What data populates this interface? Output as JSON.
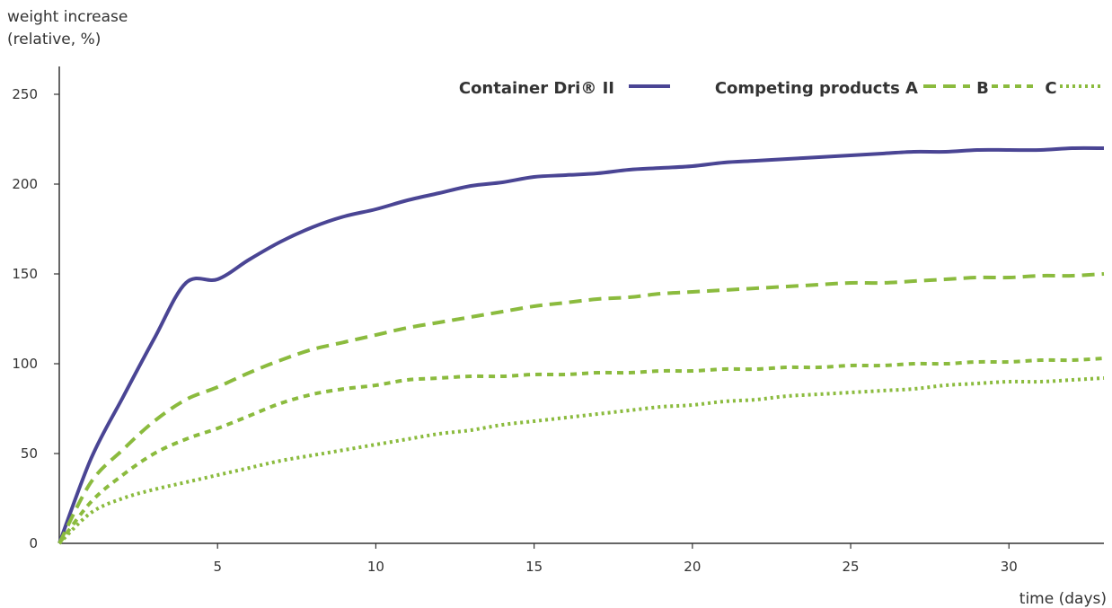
{
  "chart_data": {
    "type": "line",
    "ylabel_line1": "weight increase",
    "ylabel_line2": "(relative, %)",
    "xlabel": "time (days)",
    "xlim": [
      0,
      33
    ],
    "ylim": [
      0,
      265
    ],
    "xticks": [
      5,
      10,
      15,
      20,
      25,
      30
    ],
    "yticks": [
      0,
      50,
      100,
      150,
      200,
      250
    ],
    "grid": false,
    "legend_placement": "top-right",
    "legend": {
      "container_label": "Container Dri® II",
      "competing_label": "Competing products A",
      "b_label": "B",
      "c_label": "C"
    },
    "series": [
      {
        "key": "container_dri",
        "color": "#4a4594",
        "style": "solid",
        "x": [
          0,
          1,
          2,
          3,
          4,
          5,
          6,
          7,
          8,
          9,
          10,
          11,
          12,
          13,
          14,
          15,
          16,
          17,
          18,
          19,
          20,
          21,
          22,
          23,
          24,
          25,
          26,
          27,
          28,
          29,
          30,
          31,
          32,
          33
        ],
        "y": [
          0,
          47,
          81,
          114,
          145,
          147,
          158,
          168,
          176,
          182,
          186,
          191,
          195,
          199,
          201,
          204,
          205,
          206,
          208,
          209,
          210,
          212,
          213,
          214,
          215,
          216,
          217,
          218,
          218,
          219,
          219,
          219,
          220,
          220
        ]
      },
      {
        "key": "competing_a",
        "color": "#8bbb3e",
        "style": "dash-long",
        "x": [
          0,
          1,
          2,
          3,
          4,
          5,
          6,
          7,
          8,
          9,
          10,
          11,
          12,
          13,
          14,
          15,
          16,
          17,
          18,
          19,
          20,
          21,
          22,
          23,
          24,
          25,
          26,
          27,
          28,
          29,
          30,
          31,
          32,
          33
        ],
        "y": [
          0,
          34,
          52,
          68,
          80,
          87,
          95,
          102,
          108,
          112,
          116,
          120,
          123,
          126,
          129,
          132,
          134,
          136,
          137,
          139,
          140,
          141,
          142,
          143,
          144,
          145,
          145,
          146,
          147,
          148,
          148,
          149,
          149,
          150
        ]
      },
      {
        "key": "competing_b",
        "color": "#8bbb3e",
        "style": "dash-short",
        "x": [
          0,
          1,
          2,
          3,
          4,
          5,
          6,
          7,
          8,
          9,
          10,
          11,
          12,
          13,
          14,
          15,
          16,
          17,
          18,
          19,
          20,
          21,
          22,
          23,
          24,
          25,
          26,
          27,
          28,
          29,
          30,
          31,
          32,
          33
        ],
        "y": [
          0,
          23,
          38,
          50,
          58,
          64,
          71,
          78,
          83,
          86,
          88,
          91,
          92,
          93,
          93,
          94,
          94,
          95,
          95,
          96,
          96,
          97,
          97,
          98,
          98,
          99,
          99,
          100,
          100,
          101,
          101,
          102,
          102,
          103
        ]
      },
      {
        "key": "competing_c",
        "color": "#8bbb3e",
        "style": "dotted",
        "x": [
          0,
          1,
          2,
          3,
          4,
          5,
          6,
          7,
          8,
          9,
          10,
          11,
          12,
          13,
          14,
          15,
          16,
          17,
          18,
          19,
          20,
          21,
          22,
          23,
          24,
          25,
          26,
          27,
          28,
          29,
          30,
          31,
          32,
          33
        ],
        "y": [
          0,
          17,
          25,
          30,
          34,
          38,
          42,
          46,
          49,
          52,
          55,
          58,
          61,
          63,
          66,
          68,
          70,
          72,
          74,
          76,
          77,
          79,
          80,
          82,
          83,
          84,
          85,
          86,
          88,
          89,
          90,
          90,
          91,
          92
        ]
      }
    ]
  }
}
